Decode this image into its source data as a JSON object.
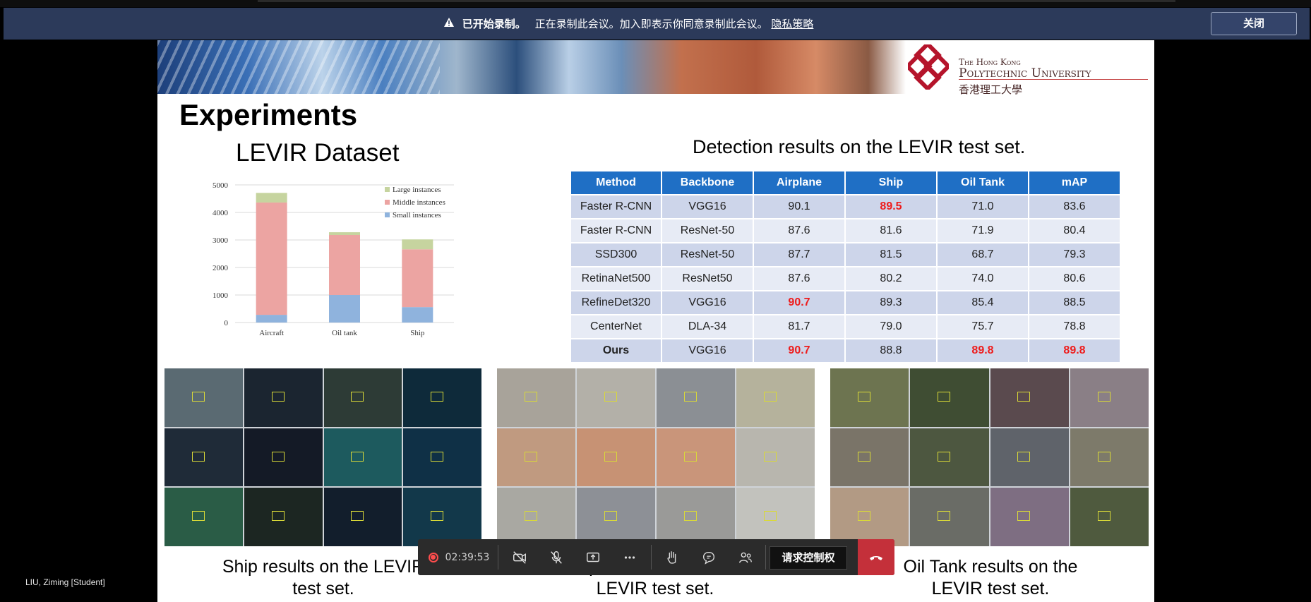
{
  "notice": {
    "bold": "已开始录制。",
    "message": "正在录制此会议。加入即表示你同意录制此会议。",
    "link": "隐私策略",
    "close": "关闭"
  },
  "banner": {
    "uni_line1": "The Hong Kong",
    "uni_line2": "Polytechnic University",
    "uni_line3": "香港理工大學"
  },
  "slide": {
    "title": "Experiments",
    "chart_title": "LEVIR Dataset",
    "table_title": "Detection results on the LEVIR test set.",
    "captions": {
      "ship": "Ship results on the LEVIR test set.",
      "airplane": "Airplane results on the LEVIR test set.",
      "oiltank": "Oil Tank results on the LEVIR test set."
    }
  },
  "chart_data": {
    "type": "bar",
    "stacked": true,
    "categories": [
      "Aircraft",
      "Oil tank",
      "Ship"
    ],
    "series": [
      {
        "name": "Small instances",
        "values": [
          280,
          1000,
          560
        ],
        "color": "#8fb3dd"
      },
      {
        "name": "Middle instances",
        "values": [
          4080,
          2180,
          2100
        ],
        "color": "#eca4a2"
      },
      {
        "name": "Large instances",
        "values": [
          350,
          100,
          360
        ],
        "color": "#c6d49f"
      }
    ],
    "legend_order": [
      "Large instances",
      "Middle instances",
      "Small instances"
    ],
    "ylim": [
      0,
      5000
    ],
    "yticks": [
      0,
      1000,
      2000,
      3000,
      4000,
      5000
    ],
    "grid": true,
    "legend": "top-right"
  },
  "table": {
    "headers": [
      "Method",
      "Backbone",
      "Airplane",
      "Ship",
      "Oil Tank",
      "mAP"
    ],
    "rows": [
      [
        "Faster R-CNN",
        "VGG16",
        "90.1",
        "89.5",
        "71.0",
        "83.6"
      ],
      [
        "Faster R-CNN",
        "ResNet-50",
        "87.6",
        "81.6",
        "71.9",
        "80.4"
      ],
      [
        "SSD300",
        "ResNet-50",
        "87.7",
        "81.5",
        "68.7",
        "79.3"
      ],
      [
        "RetinaNet500",
        "ResNet50",
        "87.6",
        "80.2",
        "74.0",
        "80.6"
      ],
      [
        "RefineDet320",
        "VGG16",
        "90.7",
        "89.3",
        "85.4",
        "88.5"
      ],
      [
        "CenterNet",
        "DLA-34",
        "81.7",
        "79.0",
        "75.7",
        "78.8"
      ],
      [
        "Ours",
        "VGG16",
        "90.7",
        "88.8",
        "89.8",
        "89.8"
      ]
    ],
    "highlight_color": "#ee1c1c"
  },
  "participant": "LIU, Ziming [Student]",
  "toolbar": {
    "timer": "02:39:53",
    "request_control": "请求控制权",
    "icons": [
      "record-icon",
      "camera-off-icon",
      "mic-off-icon",
      "share-screen-icon",
      "more-icon",
      "raise-hand-icon",
      "chat-icon",
      "participants-icon",
      "hang-up-icon"
    ]
  }
}
